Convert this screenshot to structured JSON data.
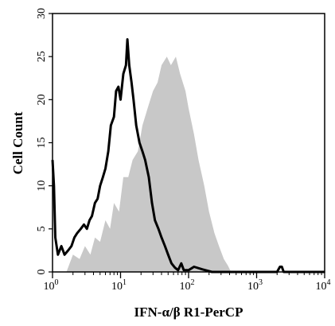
{
  "chart_data": {
    "type": "histogram",
    "title": "",
    "xlabel": "IFN-α/β R1-PerCP",
    "ylabel": "Cell Count",
    "x_scale": "log",
    "xlim": [
      1,
      10000
    ],
    "ylim": [
      0,
      30
    ],
    "grid": false,
    "legend": "none",
    "x_ticks": [
      {
        "value": 1,
        "base": "10",
        "exp": "0"
      },
      {
        "value": 10,
        "base": "10",
        "exp": "1"
      },
      {
        "value": 100,
        "base": "10",
        "exp": "2"
      },
      {
        "value": 1000,
        "base": "10",
        "exp": "3"
      },
      {
        "value": 10000,
        "base": "10",
        "exp": "4"
      }
    ],
    "y_ticks": [
      "0",
      "5",
      "10",
      "15",
      "20",
      "25",
      "30"
    ],
    "series": [
      {
        "style": "filled",
        "color": "#c8c8c8",
        "points": [
          [
            1.6,
            0
          ],
          [
            2.0,
            2
          ],
          [
            2.5,
            1.5
          ],
          [
            3.0,
            3
          ],
          [
            3.6,
            2
          ],
          [
            4.2,
            4
          ],
          [
            5.0,
            3.5
          ],
          [
            6.0,
            6
          ],
          [
            7.0,
            5
          ],
          [
            8.0,
            8
          ],
          [
            9.5,
            7
          ],
          [
            11,
            11
          ],
          [
            13,
            11
          ],
          [
            15,
            13
          ],
          [
            18,
            14
          ],
          [
            21,
            17
          ],
          [
            25,
            19
          ],
          [
            30,
            21
          ],
          [
            35,
            22
          ],
          [
            40,
            24
          ],
          [
            48,
            25
          ],
          [
            55,
            24
          ],
          [
            65,
            25
          ],
          [
            75,
            23
          ],
          [
            90,
            21
          ],
          [
            100,
            19
          ],
          [
            120,
            16
          ],
          [
            140,
            13
          ],
          [
            170,
            10
          ],
          [
            200,
            7
          ],
          [
            240,
            4.5
          ],
          [
            280,
            3
          ],
          [
            330,
            1.5
          ],
          [
            380,
            0.7
          ],
          [
            420,
            0
          ]
        ]
      },
      {
        "style": "line",
        "color": "#000000",
        "points": [
          [
            1.0,
            13
          ],
          [
            1.05,
            10
          ],
          [
            1.1,
            4
          ],
          [
            1.2,
            2
          ],
          [
            1.35,
            3
          ],
          [
            1.5,
            2
          ],
          [
            1.7,
            2.5
          ],
          [
            1.9,
            3
          ],
          [
            2.1,
            4
          ],
          [
            2.3,
            4.5
          ],
          [
            2.6,
            5
          ],
          [
            2.9,
            5.5
          ],
          [
            3.2,
            5
          ],
          [
            3.5,
            6
          ],
          [
            3.8,
            6.5
          ],
          [
            4.2,
            8
          ],
          [
            4.6,
            8.5
          ],
          [
            5.0,
            10
          ],
          [
            5.5,
            11
          ],
          [
            6.0,
            12
          ],
          [
            6.6,
            14
          ],
          [
            7.2,
            17
          ],
          [
            8.0,
            18
          ],
          [
            8.6,
            21
          ],
          [
            9.3,
            21.5
          ],
          [
            10,
            20
          ],
          [
            11,
            23
          ],
          [
            12,
            24
          ],
          [
            12.6,
            27
          ],
          [
            13.4,
            24
          ],
          [
            14.5,
            22
          ],
          [
            15.5,
            20
          ],
          [
            17,
            17
          ],
          [
            19,
            15
          ],
          [
            21,
            14
          ],
          [
            23,
            13
          ],
          [
            26,
            11
          ],
          [
            29,
            8
          ],
          [
            32,
            6
          ],
          [
            36,
            5
          ],
          [
            40,
            4
          ],
          [
            45,
            3
          ],
          [
            50,
            2
          ],
          [
            56,
            1
          ],
          [
            63,
            0.5
          ],
          [
            70,
            0.2
          ],
          [
            78,
            1.0
          ],
          [
            85,
            0.2
          ],
          [
            100,
            0.2
          ],
          [
            120,
            0.6
          ],
          [
            160,
            0.3
          ],
          [
            220,
            0
          ],
          [
            500,
            0
          ],
          [
            2000,
            0
          ],
          [
            2200,
            0.6
          ],
          [
            2350,
            0.6
          ],
          [
            2500,
            0
          ],
          [
            10000,
            0
          ]
        ]
      }
    ]
  }
}
